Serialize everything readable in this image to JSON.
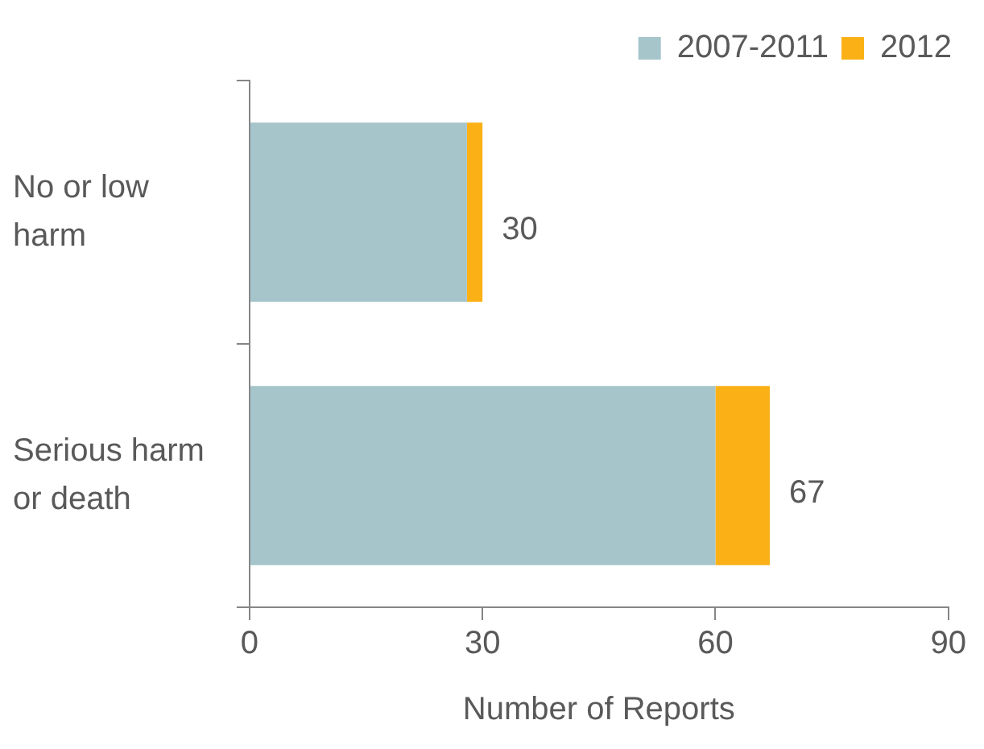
{
  "chart_data": {
    "type": "bar",
    "orientation": "horizontal",
    "stacked": true,
    "categories": [
      "No or low harm",
      "Serious harm or death"
    ],
    "series": [
      {
        "name": "2007-2011",
        "color": "#a5c5cb",
        "values": [
          28,
          60
        ]
      },
      {
        "name": "2012",
        "color": "#fbb116",
        "values": [
          2,
          7
        ]
      }
    ],
    "totals": [
      "30",
      "67"
    ],
    "xlim": [
      0,
      90
    ],
    "xticks": [
      0,
      30,
      60,
      90
    ],
    "xlabel": "Number of Reports",
    "legend": "top right"
  }
}
